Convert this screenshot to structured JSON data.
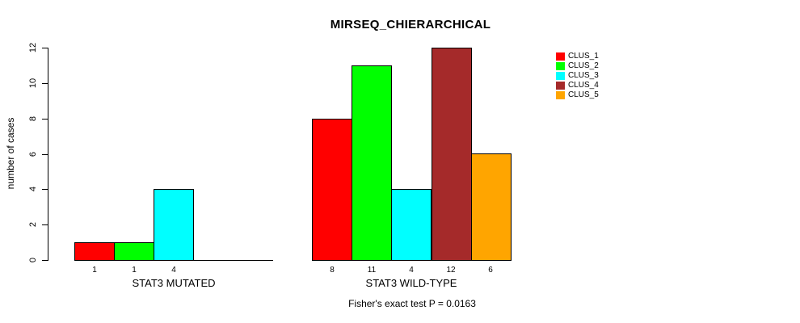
{
  "chart_data": {
    "type": "bar",
    "title": "MIRSEQ_CHIERARCHICAL",
    "ylabel": "number of cases",
    "xlabel": "",
    "ylim": [
      0,
      12
    ],
    "yticks": [
      0,
      2,
      4,
      6,
      8,
      10,
      12
    ],
    "grid": false,
    "legend_position": "right",
    "bar_value_labels_shown": true,
    "categories": [
      "STAT3 MUTATED",
      "STAT3 WILD-TYPE"
    ],
    "series": [
      {
        "name": "CLUS_1",
        "color": "#FF0000",
        "values": [
          1,
          8
        ]
      },
      {
        "name": "CLUS_2",
        "color": "#00FF00",
        "values": [
          1,
          11
        ]
      },
      {
        "name": "CLUS_3",
        "color": "#00FFFF",
        "values": [
          4,
          4
        ]
      },
      {
        "name": "CLUS_4",
        "color": "#A52A2A",
        "values": [
          0,
          12
        ]
      },
      {
        "name": "CLUS_5",
        "color": "#FFA500",
        "values": [
          0,
          6
        ]
      }
    ],
    "annotation": "Fisher's exact test P = 0.0163"
  }
}
